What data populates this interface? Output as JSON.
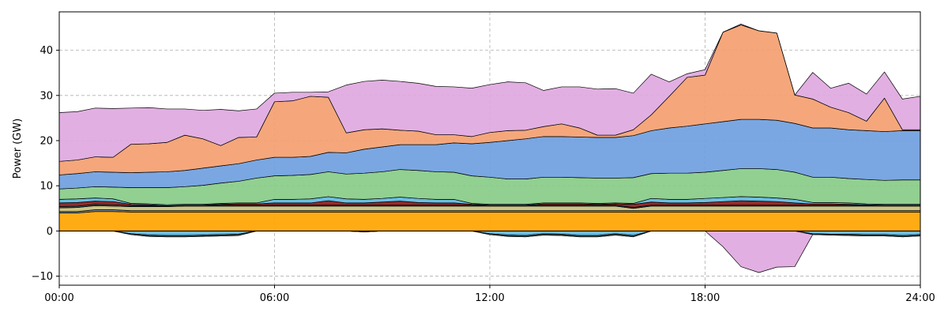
{
  "chart_data": {
    "type": "area",
    "stacked": true,
    "ylabel": "Power (GW)",
    "xlabel": "",
    "xlim": [
      0,
      24
    ],
    "ylim": [
      -12,
      48.5
    ],
    "grid": true,
    "x_ticks": [
      {
        "value": 0,
        "label": "00:00"
      },
      {
        "value": 6,
        "label": "06:00"
      },
      {
        "value": 12,
        "label": "12:00"
      },
      {
        "value": 18,
        "label": "18:00"
      },
      {
        "value": 24,
        "label": "24:00"
      }
    ],
    "y_ticks": [
      -10,
      0,
      10,
      20,
      30,
      40
    ],
    "x": [
      0,
      0.5,
      1,
      1.5,
      2,
      2.5,
      3,
      3.5,
      4,
      4.5,
      5,
      5.5,
      6,
      6.5,
      7,
      7.5,
      8,
      8.5,
      9,
      9.5,
      10,
      10.5,
      11,
      11.5,
      12,
      12.5,
      13,
      13.5,
      14,
      14.5,
      15,
      15.5,
      16,
      16.5,
      17,
      17.5,
      18,
      18.5,
      19,
      19.5,
      20,
      20.5,
      21,
      21.5,
      22,
      22.5,
      23,
      23.5,
      24
    ],
    "positive_series": [
      {
        "color": "#ffa500",
        "values": [
          4.0,
          4.0,
          4.3,
          4.3,
          4.2,
          4.2,
          4.2,
          4.2,
          4.2,
          4.2,
          4.2,
          4.2,
          4.2,
          4.2,
          4.2,
          4.2,
          4.2,
          4.2,
          4.2,
          4.2,
          4.2,
          4.2,
          4.2,
          4.2,
          4.2,
          4.2,
          4.2,
          4.2,
          4.2,
          4.2,
          4.2,
          4.2,
          4.2,
          4.2,
          4.2,
          4.2,
          4.2,
          4.2,
          4.2,
          4.2,
          4.2,
          4.2,
          4.2,
          4.2,
          4.2,
          4.2,
          4.2,
          4.2,
          4.2
        ]
      },
      {
        "color": "#708090",
        "values": [
          0.3,
          0.3,
          0.4,
          0.4,
          0.3,
          0.3,
          0.3,
          0.3,
          0.3,
          0.3,
          0.3,
          0.3,
          0.3,
          0.3,
          0.3,
          0.3,
          0.3,
          0.3,
          0.3,
          0.3,
          0.3,
          0.3,
          0.3,
          0.3,
          0.3,
          0.3,
          0.3,
          0.3,
          0.3,
          0.3,
          0.3,
          0.3,
          0.3,
          0.3,
          0.3,
          0.3,
          0.3,
          0.3,
          0.3,
          0.3,
          0.3,
          0.3,
          0.3,
          0.3,
          0.3,
          0.3,
          0.3,
          0.3,
          0.3
        ]
      },
      {
        "color": "#c8c07a",
        "values": [
          0.8,
          0.9,
          0.9,
          0.8,
          0.9,
          0.9,
          0.9,
          1.0,
          1.0,
          1.0,
          1.0,
          1.0,
          1.0,
          1.0,
          1.0,
          1.0,
          1.0,
          1.0,
          1.0,
          1.0,
          1.0,
          1.0,
          1.0,
          1.0,
          1.0,
          1.0,
          1.0,
          1.0,
          1.0,
          1.0,
          1.0,
          1.0,
          0.5,
          1.0,
          1.0,
          1.0,
          1.0,
          1.0,
          1.0,
          1.0,
          1.0,
          1.0,
          1.0,
          1.0,
          1.0,
          1.0,
          1.0,
          1.0,
          1.0
        ]
      },
      {
        "color": "#2f4f4f",
        "values": [
          0.3,
          0.3,
          0.3,
          0.3,
          0.2,
          0.2,
          0.2,
          0.2,
          0.2,
          0.2,
          0.2,
          0.2,
          0.2,
          0.2,
          0.2,
          0.2,
          0.2,
          0.2,
          0.2,
          0.2,
          0.2,
          0.2,
          0.2,
          0.2,
          0.2,
          0.2,
          0.2,
          0.2,
          0.2,
          0.2,
          0.2,
          0.2,
          0.2,
          0.2,
          0.2,
          0.2,
          0.2,
          0.2,
          0.2,
          0.2,
          0.2,
          0.2,
          0.2,
          0.2,
          0.2,
          0.2,
          0.2,
          0.2,
          0.2
        ]
      },
      {
        "color": "#8b1a1a",
        "values": [
          0.8,
          0.8,
          0.7,
          0.7,
          0.3,
          0.2,
          0.0,
          0.0,
          0.0,
          0.2,
          0.3,
          0.3,
          0.5,
          0.5,
          0.5,
          1.0,
          0.5,
          0.5,
          0.7,
          0.9,
          0.6,
          0.5,
          0.5,
          0.2,
          0.0,
          0.0,
          0.0,
          0.3,
          0.3,
          0.3,
          0.2,
          0.3,
          0.7,
          0.7,
          0.5,
          0.5,
          0.6,
          0.8,
          1.0,
          0.9,
          0.8,
          0.5,
          0.3,
          0.3,
          0.2,
          0.1,
          0.0,
          0.0,
          0.0
        ]
      },
      {
        "color": "#5fb8e0",
        "values": [
          0.8,
          0.8,
          0.7,
          0.6,
          0.2,
          0.2,
          0.2,
          0.2,
          0.2,
          0.2,
          0.2,
          0.2,
          0.8,
          0.8,
          0.9,
          0.9,
          0.9,
          0.8,
          0.8,
          0.9,
          0.9,
          0.8,
          0.8,
          0.2,
          0.2,
          0.2,
          0.2,
          0.2,
          0.2,
          0.2,
          0.2,
          0.2,
          0.2,
          0.8,
          0.8,
          0.8,
          0.9,
          0.9,
          0.9,
          0.9,
          0.8,
          0.8,
          0.3,
          0.3,
          0.3,
          0.2,
          0.2,
          0.2,
          0.2
        ]
      },
      {
        "color": "#88cc88",
        "values": [
          2.3,
          2.4,
          2.5,
          2.6,
          3.5,
          3.6,
          3.8,
          3.9,
          4.2,
          4.5,
          4.8,
          5.5,
          5.2,
          5.3,
          5.4,
          5.5,
          5.5,
          5.8,
          5.9,
          6.1,
          6.2,
          6.1,
          6.0,
          6.1,
          6.0,
          5.6,
          5.6,
          5.7,
          5.7,
          5.6,
          5.6,
          5.5,
          5.7,
          5.5,
          5.8,
          5.8,
          5.8,
          6.0,
          6.2,
          6.3,
          6.3,
          6.0,
          5.6,
          5.6,
          5.4,
          5.4,
          5.3,
          5.4,
          5.4
        ]
      },
      {
        "color": "#6f9fe0",
        "values": [
          3.1,
          3.2,
          3.3,
          3.3,
          3.3,
          3.4,
          3.5,
          3.6,
          3.8,
          3.8,
          3.9,
          4.0,
          4.1,
          4.0,
          4.0,
          4.3,
          4.7,
          5.3,
          5.5,
          5.5,
          5.7,
          6.0,
          6.5,
          7.1,
          7.7,
          8.5,
          8.9,
          9.0,
          9.0,
          9.0,
          9.0,
          9.0,
          9.3,
          9.5,
          10.0,
          10.4,
          10.7,
          10.8,
          10.9,
          10.9,
          10.9,
          10.8,
          10.9,
          10.9,
          10.8,
          10.8,
          10.8,
          10.9,
          10.9
        ]
      },
      {
        "color": "#f4a070",
        "values": [
          3.0,
          3.0,
          3.3,
          3.3,
          6.3,
          6.3,
          6.5,
          7.8,
          6.5,
          4.5,
          5.8,
          5.1,
          12.3,
          12.5,
          13.3,
          12.2,
          4.4,
          4.3,
          4.0,
          3.2,
          3.0,
          2.2,
          1.8,
          1.6,
          2.2,
          2.2,
          1.9,
          2.2,
          2.8,
          2.0,
          0.5,
          0.5,
          1.3,
          3.5,
          7.0,
          10.8,
          10.8,
          19.8,
          20.9,
          19.6,
          19.3,
          6.3,
          6.4,
          4.6,
          3.8,
          2.1,
          7.4,
          0.2,
          0.2
        ]
      },
      {
        "color": "#e0a8e0",
        "values": [
          10.8,
          10.7,
          10.8,
          10.8,
          8.0,
          8.0,
          7.4,
          5.8,
          6.3,
          8.0,
          5.9,
          6.2,
          1.9,
          1.9,
          0.9,
          1.2,
          10.6,
          10.7,
          10.8,
          10.8,
          10.6,
          10.7,
          10.6,
          10.7,
          10.6,
          10.8,
          10.5,
          8.0,
          8.2,
          9.1,
          10.2,
          10.3,
          8.1,
          9.0,
          3.2,
          0.8,
          1.2,
          0.0,
          0.2,
          0.0,
          0.0,
          0.0,
          5.9,
          4.2,
          6.5,
          6.0,
          5.8,
          6.8,
          7.4
        ]
      }
    ],
    "negative_series": [
      {
        "color": "#d6a07a",
        "values": [
          0,
          0,
          0,
          0,
          0,
          0,
          0,
          0,
          0,
          0,
          0,
          0,
          0,
          0,
          0,
          0,
          0,
          -0.2,
          0,
          0,
          0,
          0,
          0,
          0,
          0,
          0,
          0,
          0,
          0,
          0,
          0,
          0,
          0,
          0,
          0,
          0,
          0,
          0,
          0,
          0,
          0,
          0,
          0,
          0,
          0,
          0,
          0,
          0,
          0
        ]
      },
      {
        "color": "#5fb8e0",
        "values": [
          0,
          0,
          0,
          0,
          -0.6,
          -0.9,
          -1.0,
          -1.0,
          -0.9,
          -0.8,
          -0.7,
          0,
          0,
          0,
          0,
          0,
          0,
          0,
          0,
          0,
          0,
          0,
          0,
          0,
          -0.6,
          -0.9,
          -1.0,
          -0.6,
          -0.7,
          -1.0,
          -1.0,
          -0.6,
          -1.0,
          0,
          0,
          0,
          0,
          0,
          0,
          0,
          0,
          0,
          -0.6,
          -0.7,
          -0.7,
          -0.8,
          -0.8,
          -1.0,
          -0.8
        ]
      },
      {
        "color": "#2f4f4f",
        "values": [
          0,
          0,
          0,
          0,
          -0.2,
          -0.3,
          -0.3,
          -0.3,
          -0.3,
          -0.3,
          -0.3,
          0,
          0,
          0,
          0,
          0,
          0,
          0,
          0,
          0,
          0,
          0,
          0,
          0,
          -0.2,
          -0.3,
          -0.3,
          -0.3,
          -0.3,
          -0.3,
          -0.3,
          -0.3,
          -0.3,
          0,
          0,
          0,
          0,
          0,
          0,
          0,
          0,
          0,
          -0.2,
          -0.2,
          -0.3,
          -0.3,
          -0.3,
          -0.3,
          -0.3
        ]
      },
      {
        "color": "#e0a8e0",
        "values": [
          0,
          0,
          0,
          0,
          0,
          0,
          0,
          0,
          0,
          0,
          0,
          0,
          0,
          0,
          0,
          0,
          0,
          0,
          0,
          0,
          0,
          0,
          0,
          0,
          0,
          0,
          0,
          0,
          0,
          0,
          0,
          0,
          0,
          0,
          0,
          0,
          0,
          -3.5,
          -7.9,
          -9.2,
          -8.0,
          -7.9,
          0,
          0,
          0,
          0,
          0,
          0,
          0
        ]
      }
    ]
  }
}
